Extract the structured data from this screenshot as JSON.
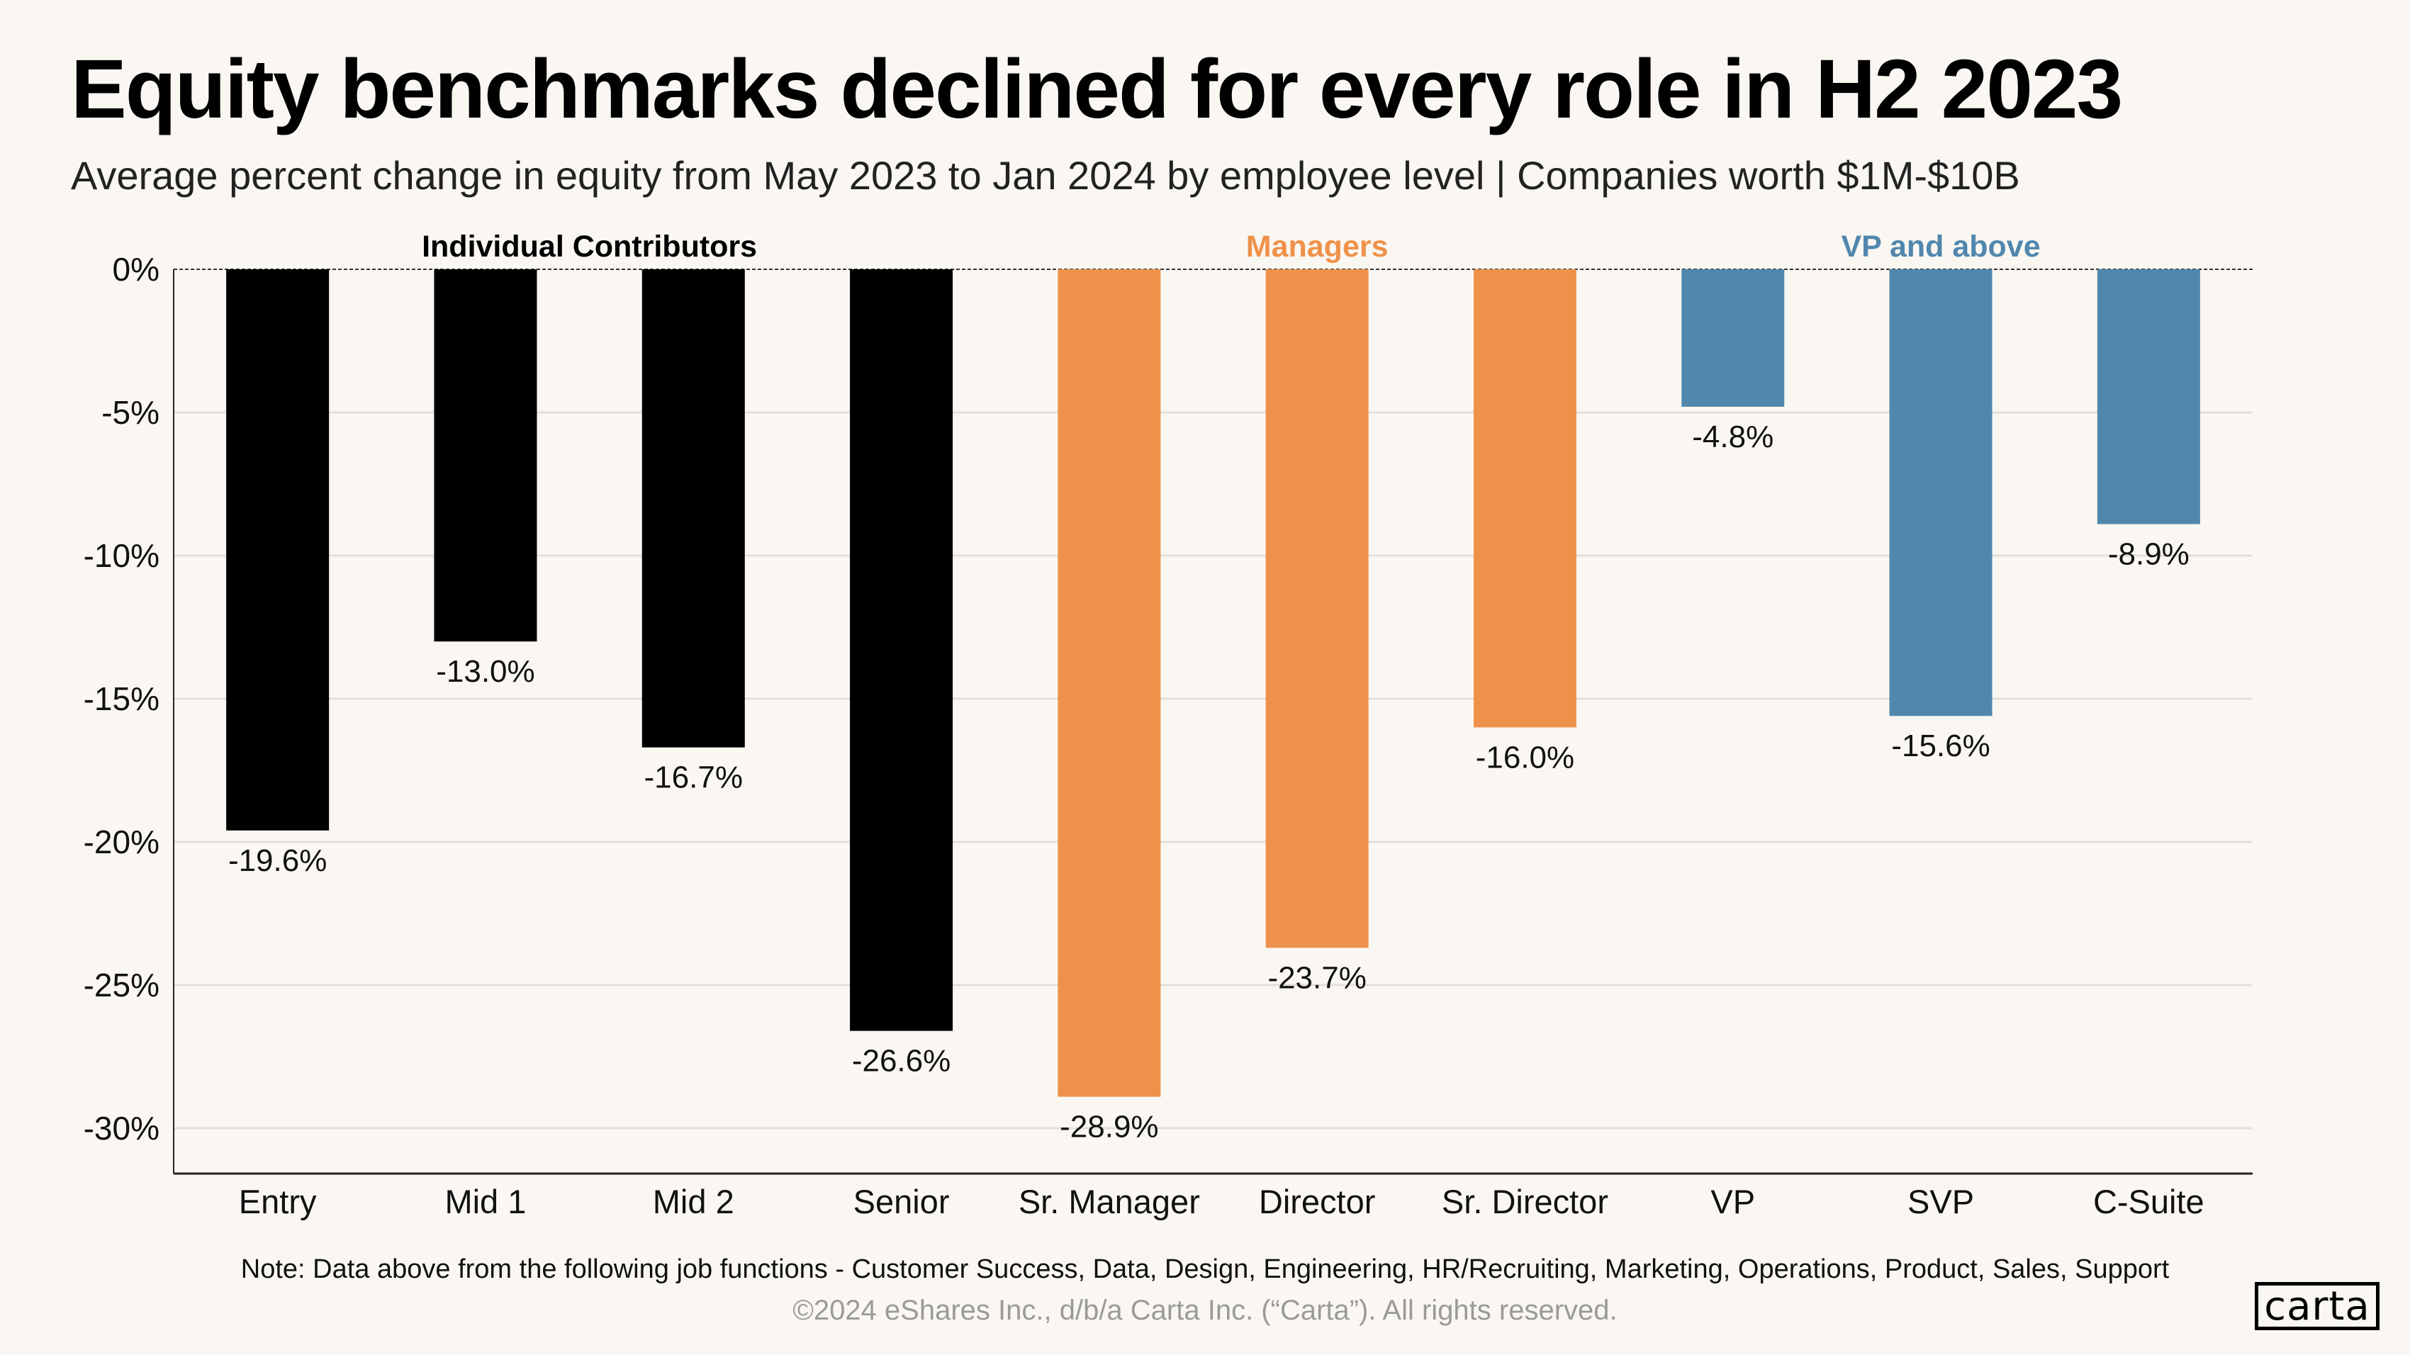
{
  "header": {
    "title": "Equity benchmarks declined for every role in H2 2023",
    "subtitle": "Average percent change in equity from May 2023 to Jan 2024 by employee level  |  Companies worth $1M-$10B"
  },
  "footer": {
    "note": "Note:  Data above from the following job functions - Customer Success, Data, Design, Engineering, HR/Recruiting, Marketing, Operations, Product,  Sales, Support",
    "copyright": "©2024 eShares Inc., d/b/a Carta Inc. (“Carta”). All rights reserved.",
    "logo": "carta"
  },
  "chart_data": {
    "type": "bar",
    "categories": [
      "Entry",
      "Mid 1",
      "Mid 2",
      "Senior",
      "Sr. Manager",
      "Director",
      "Sr. Director",
      "VP",
      "SVP",
      "C-Suite"
    ],
    "values": [
      -19.6,
      -13.0,
      -16.7,
      -26.6,
      -28.9,
      -23.7,
      -16.0,
      -4.8,
      -15.6,
      -8.9
    ],
    "data_labels": [
      "-19.6%",
      "-13.0%",
      "-16.7%",
      "-26.6%",
      "-28.9%",
      "-23.7%",
      "-16.0%",
      "-4.8%",
      "-15.6%",
      "-8.9%"
    ],
    "groups": [
      {
        "name": "Individual Contributors",
        "start": 0,
        "end": 3,
        "color": "#000000"
      },
      {
        "name": "Managers",
        "start": 4,
        "end": 6,
        "color": "#ee924b"
      },
      {
        "name": "VP and above",
        "start": 7,
        "end": 9,
        "color": "#5187ad"
      }
    ],
    "ylim": [
      -32,
      0
    ],
    "yticks": [
      0,
      -5,
      -10,
      -15,
      -20,
      -25,
      -30
    ],
    "ytick_labels": [
      "0%",
      "-5%",
      "-10%",
      "-15%",
      "-20%",
      "-25%",
      "-30%"
    ],
    "grid": true,
    "xlabel": "",
    "ylabel": ""
  }
}
